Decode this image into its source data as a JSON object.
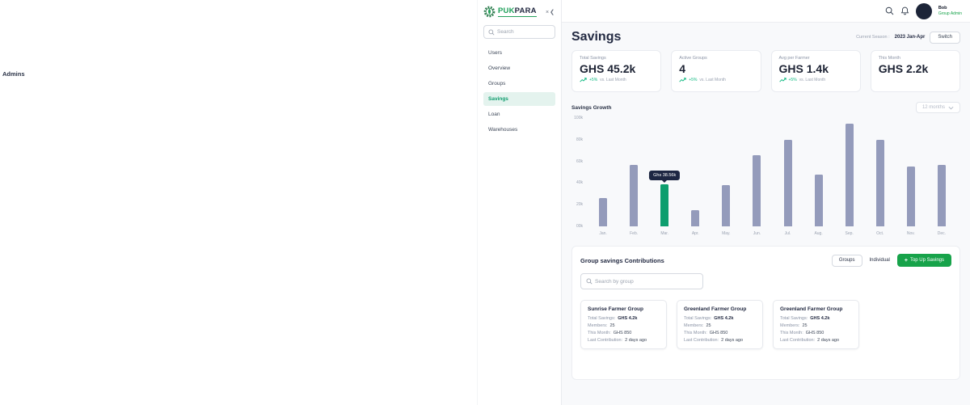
{
  "page": {
    "left_sidebar_label": "Admins"
  },
  "brand": {
    "name_primary": "PUK",
    "name_secondary": "PARA",
    "collapse_icon": "×❮"
  },
  "sidebar": {
    "search_placeholder": "Search",
    "items": [
      {
        "label": "Users",
        "active": false
      },
      {
        "label": "Overview",
        "active": false
      },
      {
        "label": "Groups",
        "active": false
      },
      {
        "label": "Savings",
        "active": true
      },
      {
        "label": "Loan",
        "active": false
      },
      {
        "label": "Warehouses",
        "active": false
      }
    ]
  },
  "topbar": {
    "user_name": "Bob",
    "user_role": "Group Admin"
  },
  "title_bar": {
    "title": "Savings",
    "season_label": "Current Season :",
    "season_value": "2023 Jan-Apr",
    "switch_label": "Switch"
  },
  "stats": [
    {
      "label": "Total Savings",
      "value": "GHS 45.2k",
      "delta": "+5%",
      "delta_note": "vs. Last Month"
    },
    {
      "label": "Active Groups",
      "value": "4",
      "delta": "+5%",
      "delta_note": "vs. Last Month"
    },
    {
      "label": "Avg per Farmer",
      "value": "GHS 1.4k",
      "delta": "+5%",
      "delta_note": "vs. Last Month"
    },
    {
      "label": "This Month",
      "value": "GHS 2.2k"
    }
  ],
  "chart": {
    "heading": "Savings Growth",
    "range_label": "12 months"
  },
  "chart_data": {
    "type": "bar",
    "title": "Savings Growth",
    "categories": [
      "Jan.",
      "Feb.",
      "Mar.",
      "Apr.",
      "May.",
      "Jun.",
      "Jul.",
      "Aug.",
      "Sep.",
      "Oct.",
      "Nov.",
      "Dec."
    ],
    "values": [
      26,
      57,
      38.56,
      15,
      38,
      66,
      80,
      48,
      95,
      80,
      55,
      57
    ],
    "unit": "GHS thousands",
    "ylim": [
      0,
      100
    ],
    "y_ticks": [
      "00k",
      "20k",
      "40k",
      "60k",
      "80k",
      "100k"
    ],
    "grid": false,
    "legend": false,
    "bar_color": "#949bbb",
    "highlight": {
      "index": 2,
      "color": "#0d9e6e",
      "tooltip": "Ghs 38.56k"
    }
  },
  "contributions": {
    "heading": "Group savings Contributions",
    "tab_groups": "Groups",
    "tab_individual": "Individual",
    "top_up_plus": "+",
    "top_up_label": "Top Up Savings",
    "search_placeholder": "Search by group",
    "cards": [
      {
        "name": "Sunrise Farmer Group",
        "rows": [
          {
            "label": "Total Savings:",
            "value": "GHS 4.2k",
            "strong": true
          },
          {
            "label": "Members:",
            "value": "25"
          },
          {
            "label": "This Month:",
            "value": "GHS 850"
          },
          {
            "label": "Last Contribution:",
            "value": "2 days ago"
          }
        ]
      },
      {
        "name": "Greenland Farmer Group",
        "rows": [
          {
            "label": "Total Savings:",
            "value": "GHS 4.2k",
            "strong": true
          },
          {
            "label": "Members:",
            "value": "25"
          },
          {
            "label": "This Month:",
            "value": "GHS 850"
          },
          {
            "label": "Last Contribution:",
            "value": "2 days ago"
          }
        ]
      },
      {
        "name": "Greenland Farmer Group",
        "rows": [
          {
            "label": "Total Savings:",
            "value": "GHS 4.2k",
            "strong": true
          },
          {
            "label": "Members:",
            "value": "25"
          },
          {
            "label": "This Month:",
            "value": "GHS 850"
          },
          {
            "label": "Last Contribution:",
            "value": "2 days ago"
          }
        ]
      }
    ]
  },
  "colors": {
    "brand_green": "#1fa05a",
    "accent_green": "#17a34a",
    "active_item_bg": "#e4f3ee",
    "active_item_text": "#0f9d6e",
    "bar": "#949bbb",
    "bar_highlight": "#0d9e6e",
    "tooltip_bg": "#1d2642",
    "delta_positive": "#10b981",
    "avatar_bg": "#1c2438",
    "page_bg": "#f8f9fb"
  }
}
